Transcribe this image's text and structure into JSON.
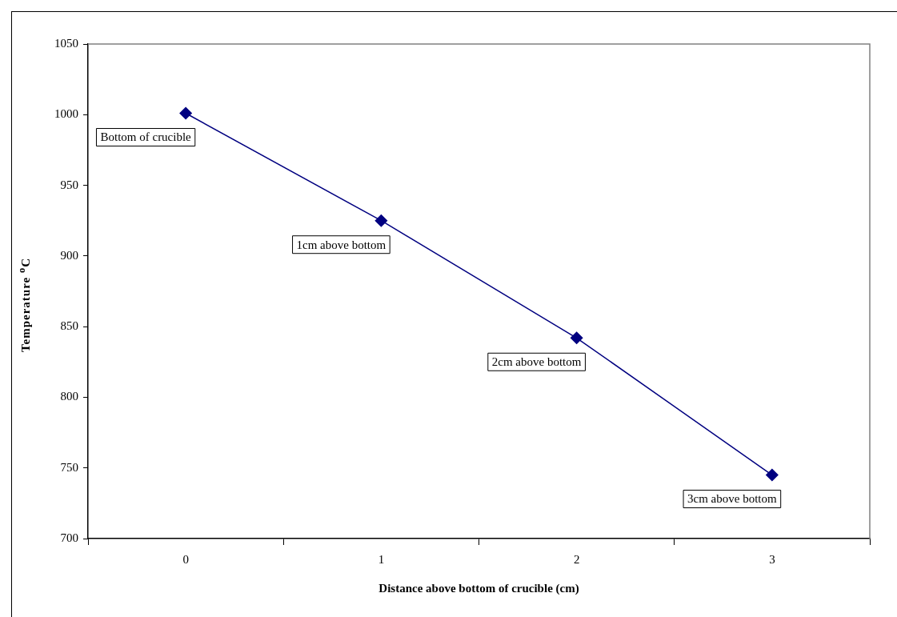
{
  "chart_data": {
    "type": "line",
    "xlabel": "Distance above bottom of crucible (cm)",
    "ylabel": "Temperature $^{o}$C",
    "categories": [
      "0",
      "1",
      "2",
      "3"
    ],
    "series": [
      {
        "color": "#000080",
        "values": [
          1001,
          925,
          842,
          745
        ]
      }
    ],
    "ylim": [
      700,
      1050
    ],
    "yticks": [
      700,
      750,
      800,
      850,
      900,
      950,
      1000,
      1050
    ],
    "grid": false,
    "legend": false,
    "marker": "diamond",
    "line_style": "solid",
    "annotations": [
      {
        "text": "Bottom of crucible",
        "x": "0",
        "y": 1001
      },
      {
        "text": "1cm above bottom",
        "x": "1",
        "y": 925
      },
      {
        "text": "2cm above bottom",
        "x": "2",
        "y": 842
      },
      {
        "text": "3cm above bottom",
        "x": "3",
        "y": 745
      }
    ]
  }
}
